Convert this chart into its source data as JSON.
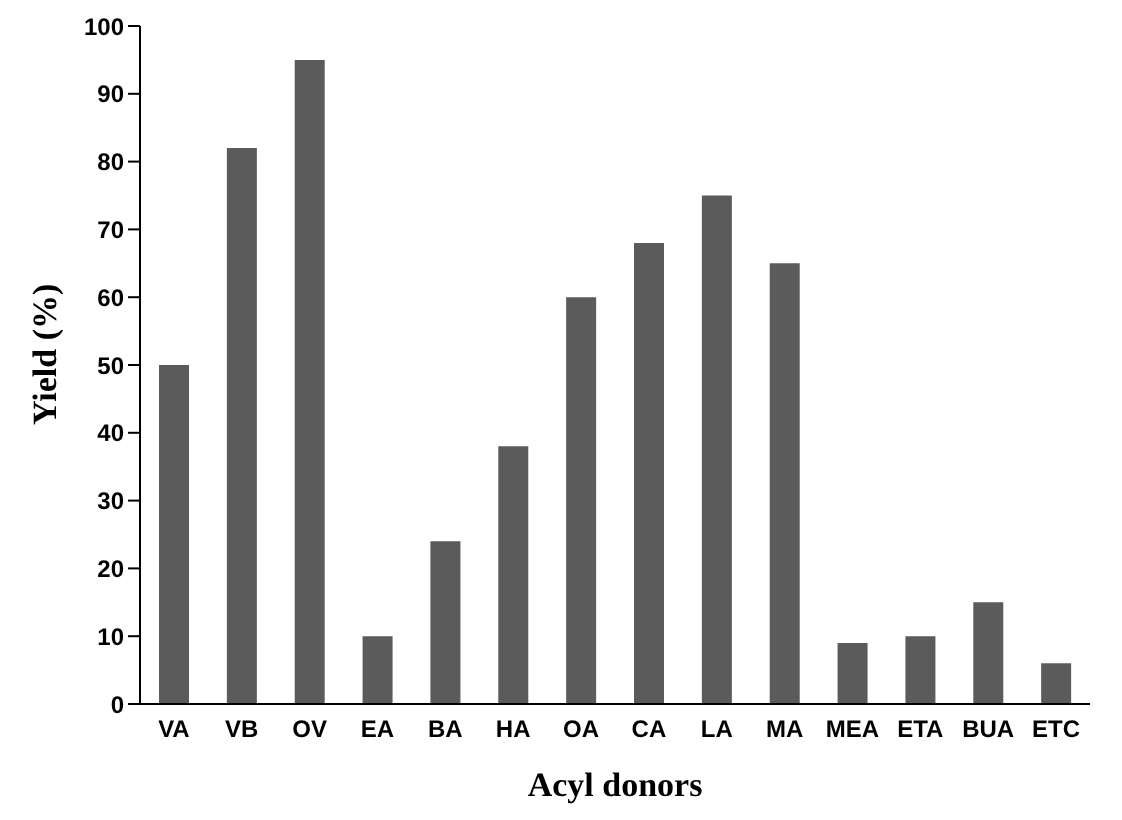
{
  "chart_data": {
    "type": "bar",
    "xlabel": "Acyl donors",
    "ylabel": "Yield (%)",
    "categories": [
      "VA",
      "VB",
      "OV",
      "EA",
      "BA",
      "HA",
      "OA",
      "CA",
      "LA",
      "MA",
      "MEA",
      "ETA",
      "BUA",
      "ETC"
    ],
    "values": [
      50,
      82,
      95,
      10,
      24,
      38,
      60,
      68,
      75,
      65,
      9,
      10,
      15,
      6
    ],
    "color": "#5b5b5b",
    "ylim": [
      0,
      100
    ],
    "yticks": [
      0,
      10,
      20,
      30,
      40,
      50,
      60,
      70,
      80,
      90,
      100
    ],
    "grid": false
  }
}
